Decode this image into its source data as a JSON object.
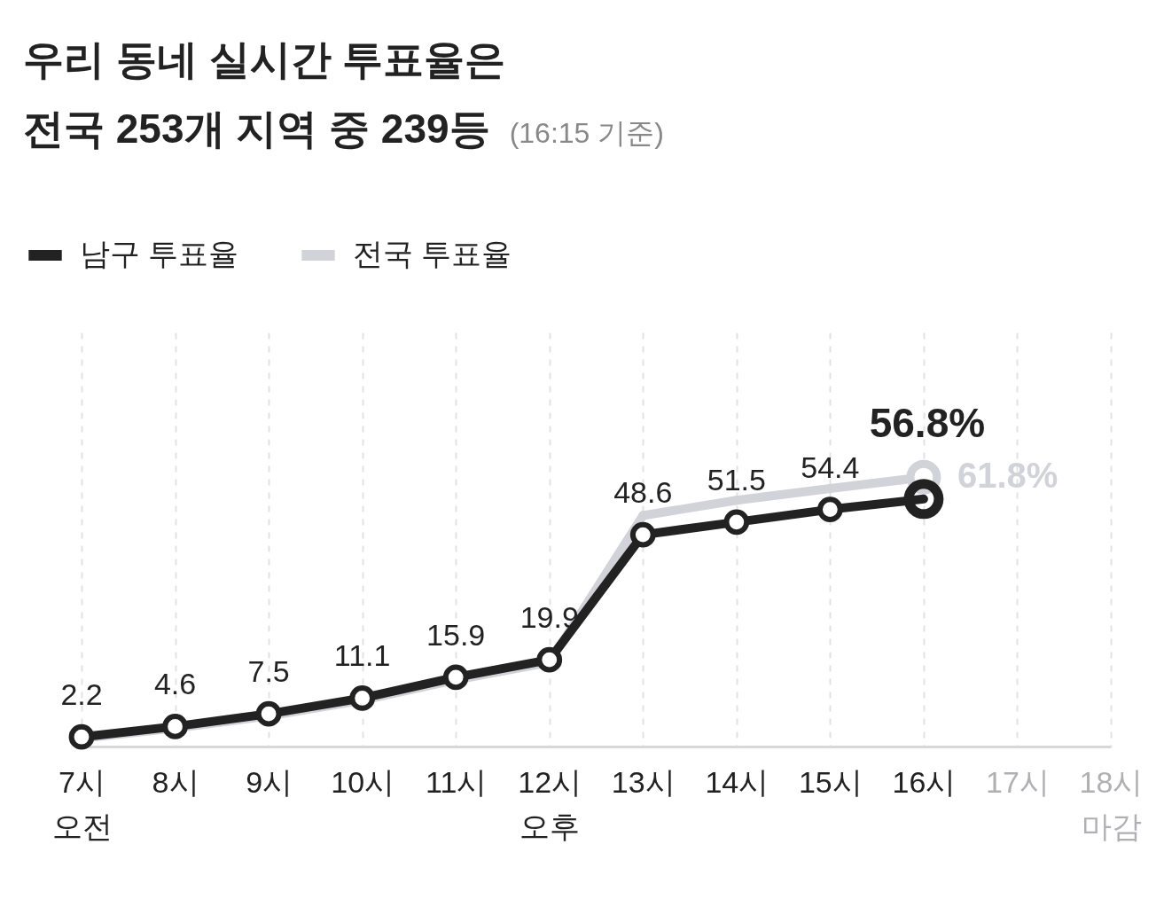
{
  "chart_data": {
    "type": "line",
    "title": "우리 동네 실시간 투표율은\n전국 253개 지역 중 239등",
    "subtitle": "(16:15 기준)",
    "categories": [
      "7시\n오전",
      "8시",
      "9시",
      "10시",
      "11시",
      "12시\n오후",
      "13시",
      "14시",
      "15시",
      "16시",
      "17시",
      "18시\n마감"
    ],
    "series": [
      {
        "name": "남구 투표율",
        "color": "#222222",
        "values": [
          2.2,
          4.6,
          7.5,
          11.1,
          15.9,
          19.9,
          48.6,
          51.5,
          54.4,
          56.8,
          null,
          null
        ],
        "value_labels": [
          "2.2",
          "4.6",
          "7.5",
          "11.1",
          "15.9",
          "19.9",
          "48.6",
          "51.5",
          "54.4",
          "56.8%",
          null,
          null
        ]
      },
      {
        "name": "전국 투표율",
        "color": "#d2d3d8",
        "values": [
          1.9,
          4.2,
          7.0,
          10.6,
          15.3,
          19.3,
          53.0,
          56.5,
          59.2,
          61.8,
          null,
          null
        ],
        "value_labels": [
          null,
          null,
          null,
          null,
          null,
          null,
          null,
          null,
          null,
          "61.8%",
          null,
          null
        ]
      }
    ],
    "ylim": [
      0,
      95
    ],
    "grid": "x",
    "legend": "top left",
    "marker": "circle",
    "tick_labels": "x"
  }
}
